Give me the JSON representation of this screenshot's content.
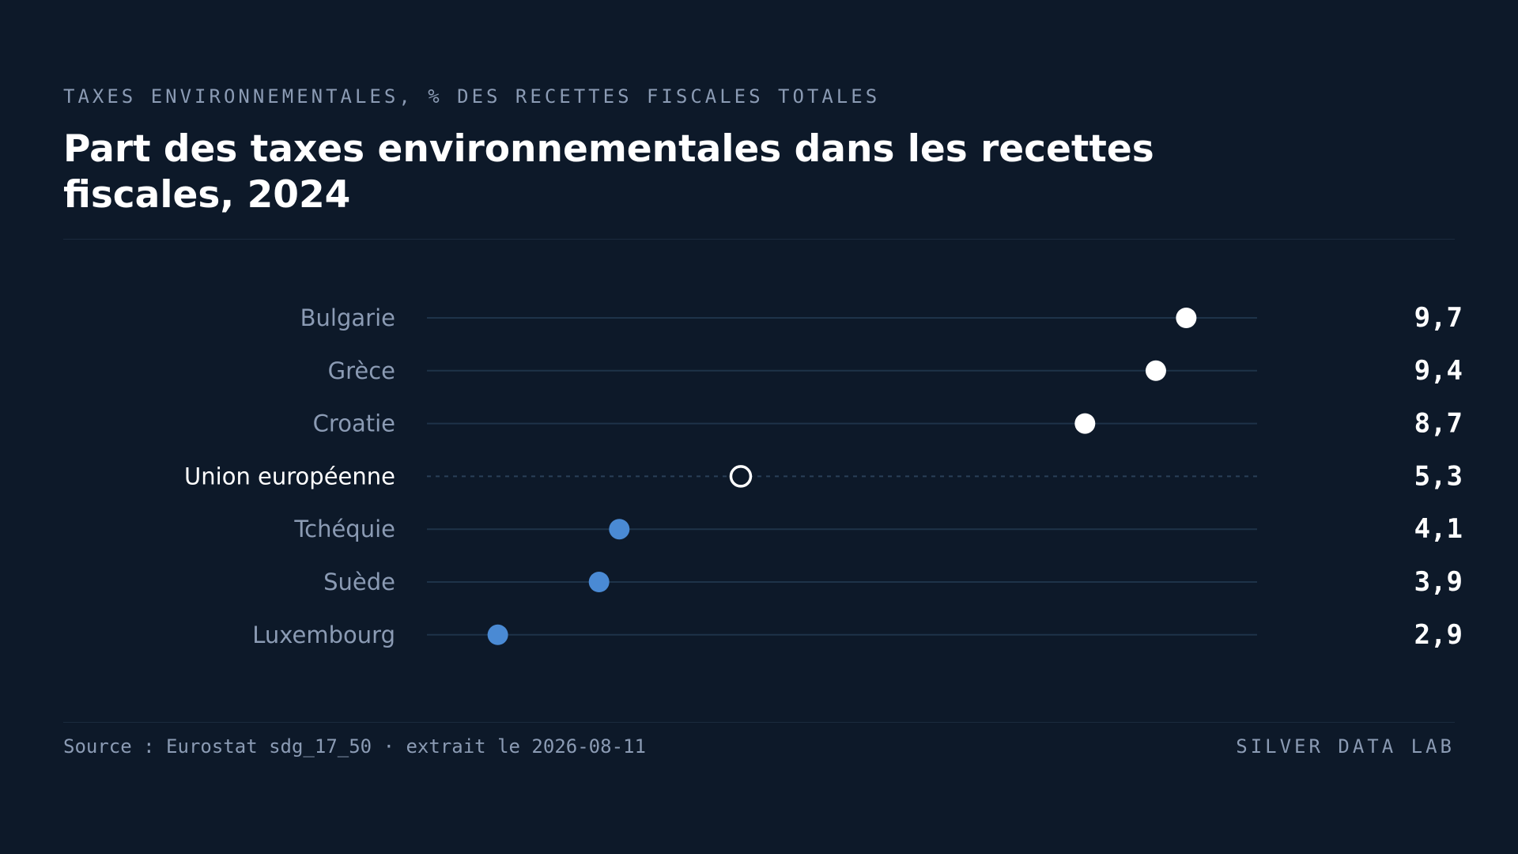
{
  "header": {
    "eyebrow": "TAXES ENVIRONNEMENTALES, % DES RECETTES FISCALES TOTALES",
    "title": "Part des taxes environnementales dans les recettes fiscales, 2024"
  },
  "footer": {
    "source": "Source : Eurostat sdg_17_50 · extrait le 2026-08-11",
    "brand": "SILVER DATA LAB"
  },
  "colors": {
    "background": "#0d1929",
    "above_average_dot": "#ffffff",
    "below_average_dot": "#4a8ad4",
    "reference_dot_stroke": "#ffffff",
    "track_line": "#1e3349",
    "label_text": "#8b9bb4",
    "reference_label_text": "#ffffff",
    "value_text": "#ffffff"
  },
  "chart_data": {
    "type": "scatter",
    "subtype": "dot-plot",
    "title": "Part des taxes environnementales dans les recettes fiscales, 2024",
    "unit": "% des recettes fiscales totales",
    "categories": [
      "Bulgarie",
      "Grèce",
      "Croatie",
      "Union européenne",
      "Tchéquie",
      "Suède",
      "Luxembourg"
    ],
    "values": [
      9.7,
      9.4,
      8.7,
      5.3,
      4.1,
      3.9,
      2.9
    ],
    "value_labels": [
      "9,7",
      "9,4",
      "8,7",
      "5,3",
      "4,1",
      "3,9",
      "2,9"
    ],
    "reference_category": "Union européenne",
    "xlim": [
      2.2,
      10.4
    ],
    "grid": false,
    "legend": "none"
  }
}
